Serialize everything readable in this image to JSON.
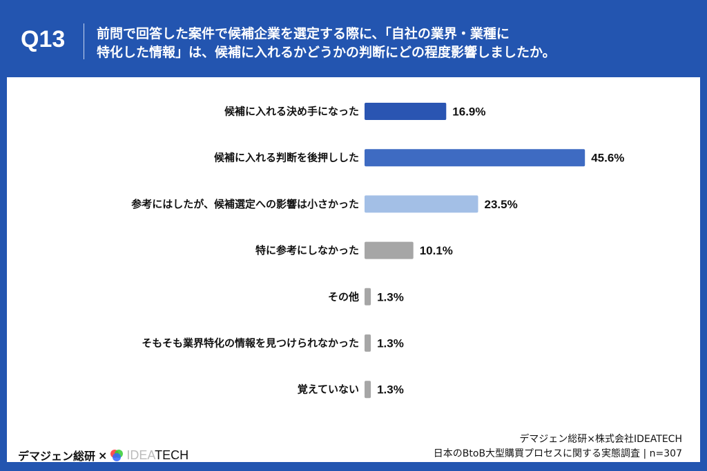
{
  "header": {
    "question_no": "Q13",
    "title_line1": "前問で回答した案件で候補企業を選定する際に、「自社の業界・業種に",
    "title_line2": "特化した情報」は、候補に入れるかどうかの判断にどの程度影響しましたか。"
  },
  "chart_data": {
    "type": "bar",
    "orientation": "horizontal",
    "categories": [
      "候補に入れる決め手になった",
      "候補に入れる判断を後押しした",
      "参考にはしたが、候補選定への影響は小さかった",
      "特に参考にしなかった",
      "その他",
      "そもそも業界特化の情報を見つけられなかった",
      "覚えていない"
    ],
    "values": [
      16.9,
      45.6,
      23.5,
      10.1,
      1.3,
      1.3,
      1.3
    ],
    "value_labels": [
      "16.9%",
      "45.6%",
      "23.5%",
      "10.1%",
      "1.3%",
      "1.3%",
      "1.3%"
    ],
    "colors": [
      "#2a55b2",
      "#3e6bc2",
      "#a3bfe6",
      "#a6a6a6",
      "#a6a6a6",
      "#a6a6a6",
      "#a6a6a6"
    ],
    "grid": false
  },
  "footer": {
    "logo_text": "デマジェン総研",
    "logo_x": "×",
    "logo_idea": "IDEA",
    "logo_tech": "TECH",
    "credit_line1": "デマジェン総研×株式会社IDEATECH",
    "credit_line2": "日本のBtoB大型購買プロセスに関する実態調査 | n=307"
  }
}
